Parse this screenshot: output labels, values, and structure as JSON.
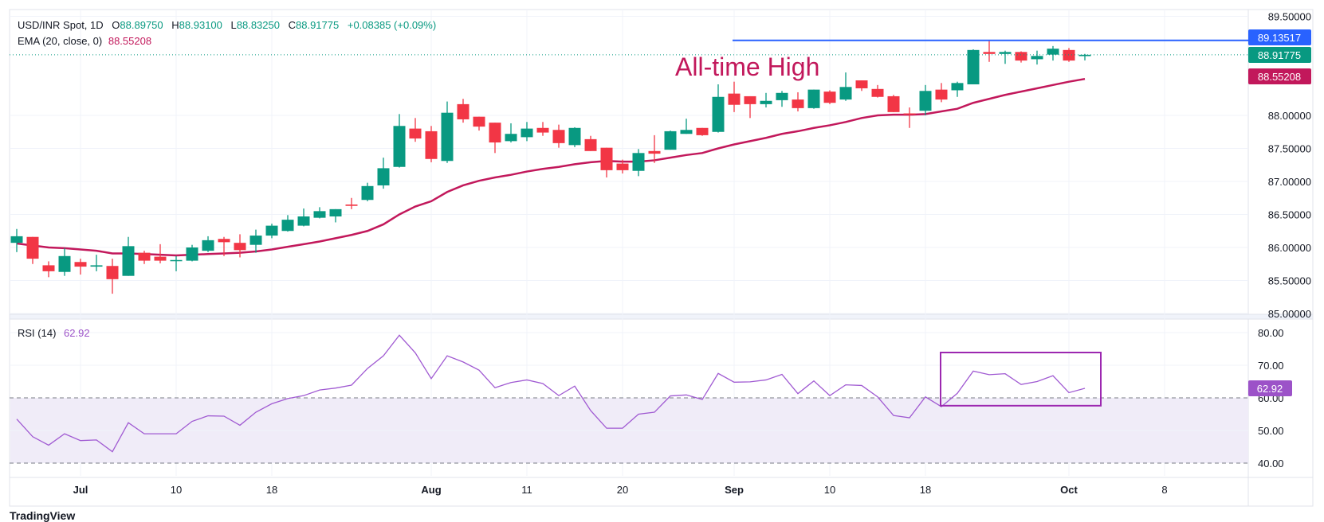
{
  "header": {
    "symbol": "USD/INR Spot, 1D",
    "open_key": "O",
    "open": "88.89750",
    "high_key": "H",
    "high": "88.93100",
    "low_key": "L",
    "low": "88.83250",
    "close_key": "C",
    "close": "88.91775",
    "change": "+0.08385 (+0.09%)",
    "ema_label": "EMA (20, close, 0)",
    "ema_value": "88.55208"
  },
  "rsi_legend": {
    "label": "RSI (14)",
    "value": "62.92"
  },
  "annotation": "All-time High",
  "logo": "TradingView",
  "colors": {
    "up": "#089981",
    "down": "#f23645",
    "ema": "#c2185b",
    "resistance": "#2962ff",
    "rsi": "#a05ad2",
    "rsi_box": "#9c27b0",
    "rsi_band": "#f0ecf8",
    "grid": "#f0f3fa"
  },
  "chart_data": [
    {
      "type": "candlestick",
      "title": "USD/INR Spot, 1D",
      "ylim": [
        85.17,
        89.6
      ],
      "y_ticks": [
        "89.50000",
        "88.00000",
        "87.50000",
        "87.00000",
        "86.50000",
        "86.00000",
        "85.50000",
        "85.00000"
      ],
      "y_tick_values": [
        89.5,
        88.0,
        87.5,
        87.0,
        86.5,
        86.0,
        85.5,
        85.0
      ],
      "x_ticks": [
        {
          "label": "Jul",
          "index": 4,
          "bold": true
        },
        {
          "label": "10",
          "index": 10
        },
        {
          "label": "18",
          "index": 16
        },
        {
          "label": "Aug",
          "index": 26,
          "bold": true
        },
        {
          "label": "11",
          "index": 32
        },
        {
          "label": "20",
          "index": 38
        },
        {
          "label": "Sep",
          "index": 45,
          "bold": true
        },
        {
          "label": "10",
          "index": 51
        },
        {
          "label": "18",
          "index": 57
        },
        {
          "label": "Oct",
          "index": 66,
          "bold": true
        },
        {
          "label": "8",
          "index": 72
        }
      ],
      "ohlc": [
        [
          86.07,
          86.28,
          85.93,
          86.17
        ],
        [
          86.16,
          86.16,
          85.75,
          85.83
        ],
        [
          85.73,
          85.79,
          85.55,
          85.64
        ],
        [
          85.63,
          85.99,
          85.57,
          85.87
        ],
        [
          85.78,
          85.83,
          85.59,
          85.71
        ],
        [
          85.71,
          85.89,
          85.64,
          85.73
        ],
        [
          85.72,
          85.83,
          85.3,
          85.52
        ],
        [
          85.57,
          86.16,
          85.57,
          86.02
        ],
        [
          85.92,
          85.95,
          85.75,
          85.8
        ],
        [
          85.86,
          86.05,
          85.76,
          85.8
        ],
        [
          85.8,
          85.87,
          85.64,
          85.81
        ],
        [
          85.8,
          86.04,
          85.79,
          86.0
        ],
        [
          85.95,
          86.17,
          85.93,
          86.11
        ],
        [
          86.13,
          86.16,
          85.87,
          86.08
        ],
        [
          86.07,
          86.2,
          85.85,
          85.96
        ],
        [
          86.04,
          86.27,
          85.92,
          86.18
        ],
        [
          86.18,
          86.36,
          86.14,
          86.33
        ],
        [
          86.25,
          86.49,
          86.24,
          86.42
        ],
        [
          86.33,
          86.59,
          86.32,
          86.47
        ],
        [
          86.45,
          86.61,
          86.44,
          86.55
        ],
        [
          86.47,
          86.58,
          86.38,
          86.58
        ],
        [
          86.65,
          86.75,
          86.58,
          86.63
        ],
        [
          86.72,
          86.98,
          86.7,
          86.93
        ],
        [
          86.94,
          87.36,
          86.89,
          87.2
        ],
        [
          87.22,
          88.02,
          87.21,
          87.84
        ],
        [
          87.8,
          87.96,
          87.6,
          87.65
        ],
        [
          87.76,
          87.84,
          87.29,
          87.34
        ],
        [
          87.31,
          88.21,
          87.28,
          88.04
        ],
        [
          88.17,
          88.25,
          87.89,
          87.94
        ],
        [
          87.98,
          87.98,
          87.77,
          87.83
        ],
        [
          87.89,
          87.89,
          87.43,
          87.59
        ],
        [
          87.61,
          87.88,
          87.59,
          87.72
        ],
        [
          87.67,
          87.9,
          87.61,
          87.8
        ],
        [
          87.81,
          87.9,
          87.69,
          87.74
        ],
        [
          87.78,
          87.86,
          87.51,
          87.58
        ],
        [
          87.55,
          87.82,
          87.52,
          87.81
        ],
        [
          87.64,
          87.69,
          87.46,
          87.46
        ],
        [
          87.51,
          87.51,
          87.06,
          87.17
        ],
        [
          87.27,
          87.33,
          87.12,
          87.17
        ],
        [
          87.16,
          87.49,
          87.08,
          87.43
        ],
        [
          87.46,
          87.7,
          87.28,
          87.42
        ],
        [
          87.48,
          87.77,
          87.48,
          87.76
        ],
        [
          87.72,
          87.95,
          87.72,
          87.78
        ],
        [
          87.81,
          87.81,
          87.69,
          87.7
        ],
        [
          87.75,
          88.47,
          87.74,
          88.28
        ],
        [
          88.33,
          88.51,
          88.05,
          88.16
        ],
        [
          88.29,
          88.29,
          87.96,
          88.17
        ],
        [
          88.17,
          88.34,
          88.12,
          88.22
        ],
        [
          88.23,
          88.37,
          88.13,
          88.34
        ],
        [
          88.24,
          88.35,
          88.06,
          88.11
        ],
        [
          88.11,
          88.39,
          88.1,
          88.39
        ],
        [
          88.36,
          88.38,
          88.17,
          88.19
        ],
        [
          88.24,
          88.65,
          88.22,
          88.43
        ],
        [
          88.53,
          88.53,
          88.37,
          88.41
        ],
        [
          88.4,
          88.46,
          88.27,
          88.28
        ],
        [
          88.29,
          88.31,
          88.05,
          88.05
        ],
        [
          88.03,
          88.12,
          87.81,
          88.02
        ],
        [
          88.07,
          88.46,
          88.0,
          88.37
        ],
        [
          88.39,
          88.49,
          88.2,
          88.24
        ],
        [
          88.38,
          88.51,
          88.28,
          88.49
        ],
        [
          88.47,
          89.0,
          88.47,
          88.99
        ],
        [
          88.96,
          89.13,
          88.81,
          88.93
        ],
        [
          88.93,
          88.98,
          88.78,
          88.96
        ],
        [
          88.96,
          88.97,
          88.8,
          88.83
        ],
        [
          88.85,
          88.98,
          88.77,
          88.9
        ],
        [
          88.92,
          89.05,
          88.83,
          89.01
        ],
        [
          88.99,
          89.02,
          88.81,
          88.83
        ],
        [
          88.8975,
          88.931,
          88.8325,
          88.91775
        ]
      ],
      "ema20": [
        86.06,
        86.03,
        86.0,
        85.99,
        85.97,
        85.95,
        85.91,
        85.91,
        85.9,
        85.89,
        85.88,
        85.89,
        85.9,
        85.91,
        85.92,
        85.94,
        85.97,
        86.01,
        86.05,
        86.09,
        86.14,
        86.19,
        86.25,
        86.35,
        86.5,
        86.62,
        86.7,
        86.84,
        86.94,
        87.01,
        87.06,
        87.1,
        87.15,
        87.19,
        87.22,
        87.26,
        87.29,
        87.31,
        87.3,
        87.3,
        87.32,
        87.36,
        87.4,
        87.43,
        87.5,
        87.56,
        87.61,
        87.66,
        87.72,
        87.76,
        87.81,
        87.85,
        87.9,
        87.96,
        88.0,
        88.01,
        88.01,
        88.02,
        88.06,
        88.1,
        88.19,
        88.25,
        88.31,
        88.36,
        88.41,
        88.46,
        88.51,
        88.55208
      ],
      "resistance_line": {
        "value": 89.13517,
        "start_index": 45,
        "label": "89.13517"
      },
      "last_price_label": "88.91775",
      "last_price": 88.91775,
      "ema_label": "88.55208"
    },
    {
      "type": "line",
      "title": "RSI (14)",
      "ylim": [
        40,
        80
      ],
      "y_ticks": [
        "80.00",
        "70.00",
        "60.00",
        "50.00",
        "40.00"
      ],
      "y_tick_values": [
        80,
        70,
        60,
        50,
        40
      ],
      "band": [
        40,
        60
      ],
      "values": [
        53.5,
        48.1,
        45.5,
        49.0,
        46.9,
        47.1,
        43.5,
        52.4,
        49.0,
        49.0,
        49.0,
        52.8,
        54.5,
        54.4,
        51.6,
        55.6,
        58.2,
        59.8,
        60.7,
        62.4,
        63.0,
        63.9,
        69.0,
        72.9,
        79.2,
        73.8,
        65.9,
        72.9,
        71.0,
        68.5,
        63.1,
        64.7,
        65.5,
        64.4,
        60.7,
        63.6,
        56.1,
        50.7,
        50.7,
        55.0,
        55.6,
        60.6,
        60.9,
        59.5,
        67.5,
        64.8,
        64.9,
        65.5,
        67.2,
        61.3,
        65.2,
        60.7,
        64.0,
        63.8,
        60.3,
        54.6,
        53.9,
        60.3,
        57.3,
        61.4,
        68.2,
        67.1,
        67.4,
        64.1,
        65.0,
        66.8,
        61.6,
        62.92
      ],
      "highlight_box": {
        "start_index": 58,
        "end_index": 68,
        "rsi_low": 57.6,
        "rsi_high": 73.9
      },
      "last_label": "62.92"
    }
  ]
}
